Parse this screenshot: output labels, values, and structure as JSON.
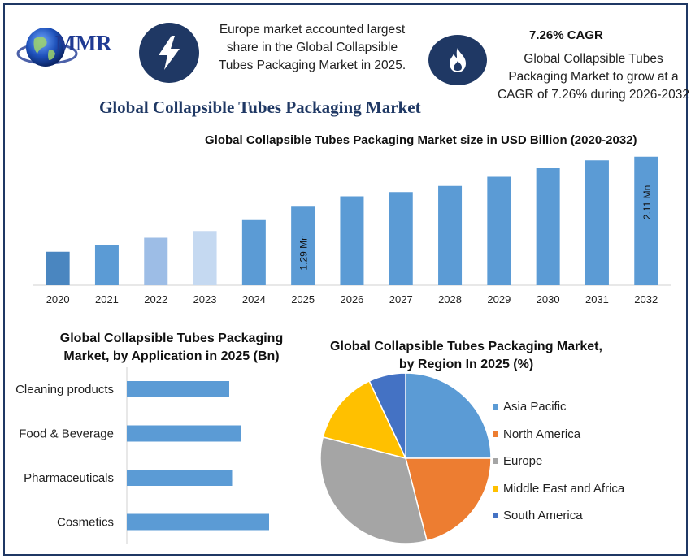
{
  "logo": {
    "text": "MMR",
    "icon": "globe-icon"
  },
  "headline": "Europe market accounted largest share in the Global Collapsible Tubes Packaging Market in 2025.",
  "cagr": {
    "title": "7.26% CAGR",
    "text": "Global Collapsible Tubes Packaging Market to grow at a CAGR of 7.26% during 2026-2032"
  },
  "icons": {
    "bolt": "lightning-bolt-icon",
    "flame": "flame-icon"
  },
  "main_title": "Global Collapsible Tubes Packaging Market",
  "colors": {
    "navy": "#1f3864",
    "bar_blue": "#5b9bd5",
    "bar_2020": "#4a86c0",
    "bar_2022": "#9dbde6",
    "bar_2023": "#c5d9f1",
    "asia_pacific": "#5b9bd5",
    "north_america": "#ed7d31",
    "europe": "#a5a5a5",
    "middle_east_africa": "#ffc000",
    "south_america": "#4472c4"
  },
  "chart_data": [
    {
      "type": "bar",
      "title": "Global Collapsible Tubes Packaging Market size in USD Billion (2020-2032)",
      "categories": [
        "2020",
        "2021",
        "2022",
        "2023",
        "2024",
        "2025",
        "2026",
        "2027",
        "2028",
        "2029",
        "2030",
        "2031",
        "2032"
      ],
      "values": [
        0.55,
        0.66,
        0.78,
        0.89,
        1.07,
        1.29,
        1.46,
        1.53,
        1.63,
        1.78,
        1.92,
        2.05,
        2.11
      ],
      "data_labels": {
        "5": "1.29 Mn",
        "12": "2.11 Mn"
      },
      "ylim": [
        0,
        2.2
      ],
      "grid": false
    },
    {
      "type": "bar",
      "orientation": "horizontal",
      "title": "Global Collapsible Tubes Packaging Market, by Application  in 2025 (Bn)",
      "categories": [
        "Cleaning products",
        "Food & Beverage",
        "Pharmaceuticals",
        "Cosmetics"
      ],
      "values": [
        0.36,
        0.4,
        0.37,
        0.5
      ],
      "xlim": [
        0,
        0.6
      ],
      "grid": false
    },
    {
      "type": "pie",
      "title": "Global Collapsible Tubes Packaging Market, by Region In 2025 (%)",
      "labels": [
        "Asia Pacific",
        "North America",
        "Europe",
        "Middle East and Africa",
        "South America"
      ],
      "values": [
        25,
        21,
        33,
        14,
        7
      ],
      "legend": "right"
    }
  ]
}
